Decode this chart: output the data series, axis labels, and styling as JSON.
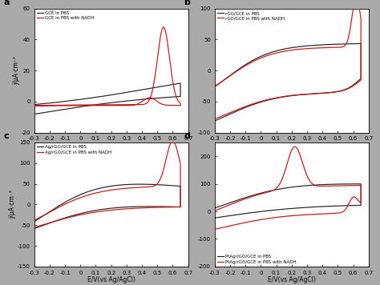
{
  "subplots": [
    {
      "label": "a",
      "ylim": [
        -20,
        60
      ],
      "yticks": [
        -20,
        0,
        20,
        40,
        60
      ],
      "legend": [
        "GCE in PBS",
        "GCE in PBS with NADH"
      ]
    },
    {
      "label": "b",
      "ylim": [
        -100,
        100
      ],
      "yticks": [
        -100,
        -50,
        0,
        50,
        100
      ],
      "legend": [
        "rGO/GCE in PBS",
        "rGO/GCE in PBS with NADH"
      ]
    },
    {
      "label": "c",
      "ylim": [
        -150,
        150
      ],
      "yticks": [
        -150,
        -100,
        -50,
        0,
        50,
        100,
        150
      ],
      "legend": [
        "Ag/rGO/GCE in PBS",
        "Ag/rGO/GCE in PBS with NADH"
      ]
    },
    {
      "label": "d",
      "ylim": [
        -200,
        250
      ],
      "yticks": [
        -200,
        -100,
        0,
        100,
        200
      ],
      "legend": [
        "PtAg/rGO/GCE in PBS",
        "PtAg/rGO/GCE in PBS with NADH"
      ]
    }
  ],
  "xlim": [
    -0.3,
    0.7
  ],
  "xticks": [
    -0.3,
    -0.2,
    -0.1,
    0.0,
    0.1,
    0.2,
    0.3,
    0.4,
    0.5,
    0.6,
    0.7
  ],
  "xlabel": "E/V(vs Ag/AgCl)",
  "ylabel": "j/μA·cm⁻²",
  "color_pbs": "#222222",
  "color_nadh": "#cc1111",
  "bg_color": "#ffffff",
  "fig_bg": "#aaaaaa"
}
